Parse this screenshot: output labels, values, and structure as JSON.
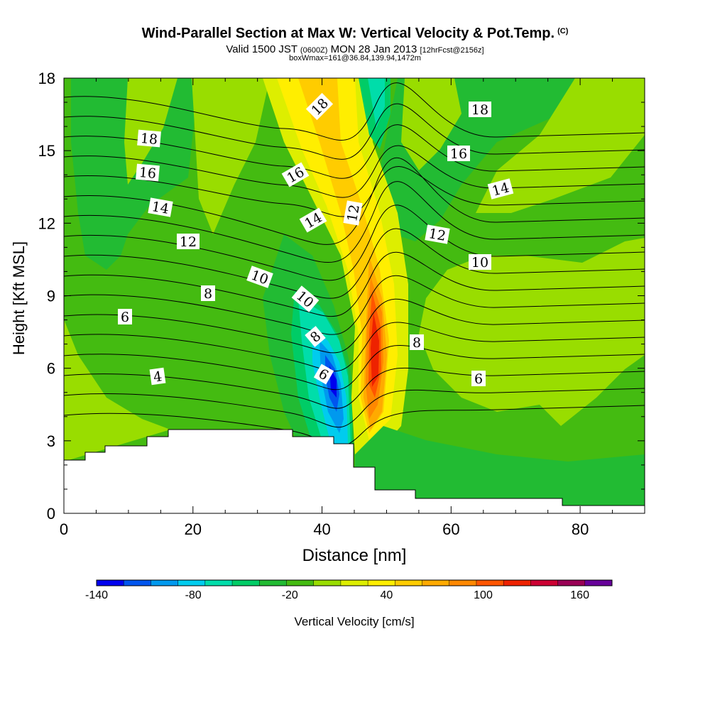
{
  "titles": {
    "main": "Wind-Parallel Section at Max W: Vertical Velocity & Pot.Temp.",
    "copyright": "(C)",
    "sub_prefix": "Valid 1500 JST",
    "sub_zulu": "(0600Z)",
    "sub_date": "MON 28 Jan 2013",
    "sub_fcst": "[12hrFcst@2156z]",
    "box": "boxWmax=161@36.84,139.94,1472m"
  },
  "chart_data": {
    "type": "heatmap",
    "xlabel": "Distance [nm]",
    "ylabel": "Height [Kft MSL]",
    "xlim": [
      0,
      90
    ],
    "ylim": [
      0,
      18
    ],
    "xticks": [
      0,
      20,
      40,
      60,
      80
    ],
    "yticks": [
      0,
      3,
      6,
      9,
      12,
      15,
      18
    ],
    "colorbar": {
      "label": "Vertical Velocity [cm/s]",
      "tick_labels": [
        "-140",
        "-80",
        "-20",
        "40",
        "100",
        "160"
      ],
      "tick_values": [
        -140,
        -80,
        -20,
        40,
        100,
        160
      ],
      "range": [
        -140,
        180
      ],
      "colors": [
        "#0000ee",
        "#0055ee",
        "#0099ee",
        "#00ccee",
        "#00ddaa",
        "#00cc66",
        "#22bb33",
        "#44bb11",
        "#99dd00",
        "#ddee00",
        "#ffee00",
        "#ffcc00",
        "#ffaa00",
        "#ff8800",
        "#ff5500",
        "#ee2200",
        "#cc0033",
        "#990055",
        "#660099"
      ]
    },
    "contour_labels": {
      "left": [
        "4",
        "6",
        "8",
        "12",
        "14",
        "16",
        "18",
        "10"
      ],
      "center": [
        "6",
        "8",
        "10",
        "14",
        "16",
        "18",
        "12"
      ],
      "right": [
        "6",
        "8",
        "10",
        "12",
        "14",
        "16",
        "18"
      ]
    },
    "key_points": [
      {
        "x": 42,
        "y": 5.5,
        "w": -140
      },
      {
        "x": 48,
        "y": 5.5,
        "w": 161
      }
    ],
    "terrain_max_kft": 3.5
  }
}
